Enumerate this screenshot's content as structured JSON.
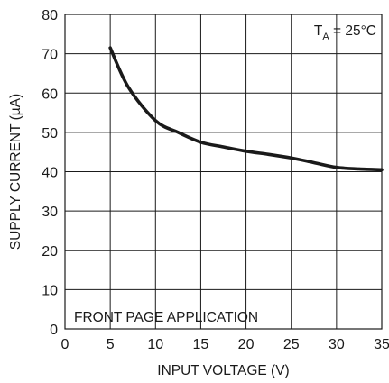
{
  "chart_data": {
    "type": "line",
    "title": "",
    "xlabel": "INPUT VOLTAGE (V)",
    "ylabel": "SUPPLY CURRENT (µA)",
    "xlim": [
      0,
      35
    ],
    "ylim": [
      0,
      80
    ],
    "x_ticks": [
      0,
      5,
      10,
      15,
      20,
      25,
      30,
      35
    ],
    "y_ticks": [
      0,
      10,
      20,
      30,
      40,
      50,
      60,
      70,
      80
    ],
    "grid": true,
    "series": [
      {
        "x": [
          5,
          7,
          10,
          12.5,
          15,
          17.5,
          20,
          22.5,
          25,
          27.5,
          30,
          32.5,
          35
        ],
        "y": [
          71.5,
          61.5,
          53,
          50,
          47.5,
          46.3,
          45.2,
          44.4,
          43.5,
          42.3,
          41.1,
          40.7,
          40.5
        ]
      }
    ],
    "annotations": [
      {
        "id": "temp",
        "prefix": "T",
        "sub": "A",
        "suffix": " = 25°C"
      },
      {
        "id": "app",
        "text": "FRONT PAGE APPLICATION"
      }
    ]
  }
}
